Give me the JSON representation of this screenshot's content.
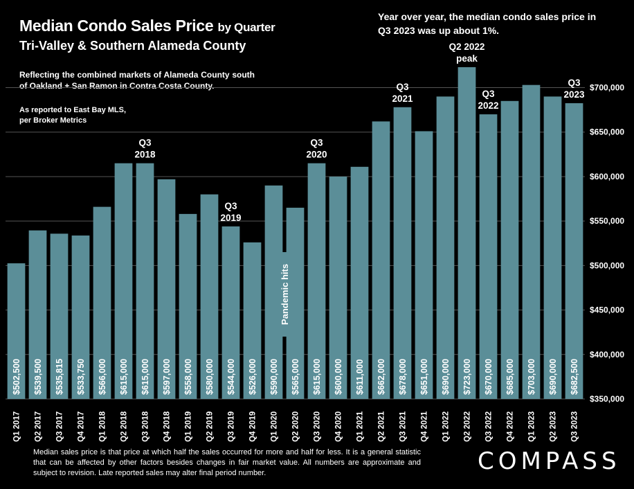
{
  "header": {
    "title_main": "Median Condo Sales Price",
    "title_suffix": "by Quarter",
    "subtitle": "Tri-Valley & Southern Alameda County",
    "yoy_note": "Year over year, the median condo sales price in Q3 2023 was up about 1%.",
    "reflecting": "Reflecting the combined markets of Alameda County south of Oakland + San Ramon in Contra Costa County.",
    "reported": "As reported to East Bay MLS, per Broker Metrics"
  },
  "footer": {
    "note": "Median sales price is that price at which half the sales occurred for more and half for less. It is a general statistic that can be affected by other factors besides changes in fair market value. All numbers are approximate and subject to revision. Late reported sales may alter final period number.",
    "logo": "COMPASS"
  },
  "chart_data": {
    "type": "bar",
    "categories": [
      "Q1 2017",
      "Q2 2017",
      "Q3 2017",
      "Q4 2017",
      "Q1 2018",
      "Q2 2018",
      "Q3 2018",
      "Q4 2018",
      "Q1 2019",
      "Q2 2019",
      "Q3 2019",
      "Q4 2019",
      "Q1 2020",
      "Q2 2020",
      "Q3 2020",
      "Q4 2020",
      "Q1 2021",
      "Q2 2021",
      "Q3 2021",
      "Q4 2021",
      "Q1 2022",
      "Q2 2022",
      "Q3 2022",
      "Q4 2022",
      "Q1 2023",
      "Q2 2023",
      "Q3 2023"
    ],
    "values": [
      502500,
      539500,
      535815,
      533750,
      566000,
      615000,
      615000,
      597000,
      558000,
      580000,
      544000,
      526000,
      590000,
      565000,
      615000,
      600000,
      611000,
      662000,
      678000,
      651000,
      690000,
      723000,
      670000,
      685000,
      703000,
      690000,
      682500
    ],
    "value_labels": [
      "$502,500",
      "$539,500",
      "$535,815",
      "$533,750",
      "$566,000",
      "$615,000",
      "$615,000",
      "$597,000",
      "$558,000",
      "$580,000",
      "$544,000",
      "$526,000",
      "$590,000",
      "$565,000",
      "$615,000",
      "$600,000",
      "$611,000",
      "$662,000",
      "$678,000",
      "$651,000",
      "$690,000",
      "$723,000",
      "$670,000",
      "$685,000",
      "$703,000",
      "$690,000",
      "$682,500"
    ],
    "ylim": [
      350000,
      730000
    ],
    "y_ticks": [
      {
        "value": 350000,
        "label": "$350,000"
      },
      {
        "value": 400000,
        "label": "$400,000"
      },
      {
        "value": 450000,
        "label": "$450,000"
      },
      {
        "value": 500000,
        "label": "$500,000"
      },
      {
        "value": 550000,
        "label": "$550,000"
      },
      {
        "value": 600000,
        "label": "$600,000"
      },
      {
        "value": 650000,
        "label": "$650,000"
      },
      {
        "value": 700000,
        "label": "$700,000"
      }
    ],
    "annotations": [
      {
        "index": 6,
        "lines": [
          "Q3",
          "2018"
        ]
      },
      {
        "index": 10,
        "lines": [
          "Q3",
          "2019"
        ]
      },
      {
        "index": 14,
        "lines": [
          "Q3",
          "2020"
        ]
      },
      {
        "index": 18,
        "lines": [
          "Q3",
          "2021"
        ]
      },
      {
        "index": 21,
        "lines": [
          "Q2 2022",
          "peak"
        ]
      },
      {
        "index": 22,
        "lines": [
          "Q3",
          "2022"
        ]
      },
      {
        "index": 26,
        "lines": [
          "Q3",
          "2023"
        ]
      }
    ],
    "callout": {
      "text": "Pandemic hits",
      "index": 12
    },
    "grid": true,
    "colors": {
      "bar": "#5b8e98",
      "grid": "#555555",
      "callout_bg": "#5b8e98"
    }
  }
}
